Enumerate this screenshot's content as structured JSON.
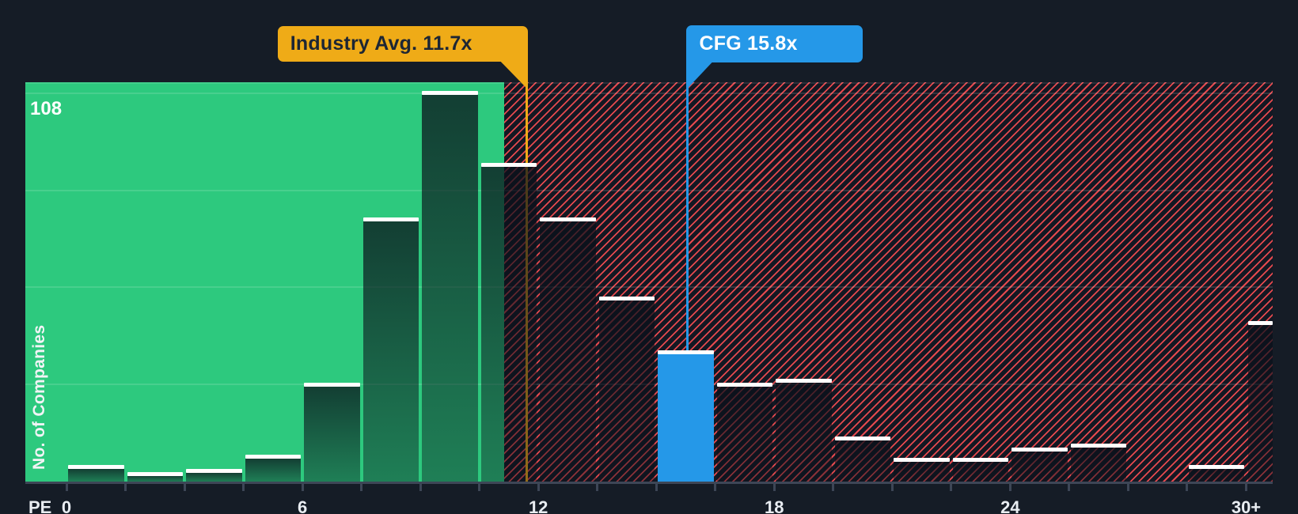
{
  "page": {
    "background_color": "#151c26"
  },
  "chart_data": {
    "type": "bar",
    "subtype": "histogram",
    "title": "",
    "xlabel": "PE",
    "ylabel": "No. of Companies",
    "grid": "horizontal-faint",
    "legend": "none",
    "x_axis": {
      "prefix_label": "PE",
      "tick_labels": [
        "0",
        "6",
        "12",
        "18",
        "24",
        "30+"
      ],
      "tick_values_pe": [
        0,
        6,
        12,
        18,
        24,
        30
      ]
    },
    "y_axis": {
      "max_label": "108",
      "gridline_values": [
        27,
        54,
        81,
        108
      ],
      "ylim": [
        0,
        111
      ]
    },
    "bins": {
      "start_pe": 0,
      "width_pe": 1.5,
      "counts": [
        4,
        2,
        3,
        7,
        27,
        73,
        108,
        88,
        73,
        51,
        36,
        27,
        28,
        12,
        6,
        6,
        9,
        10,
        0,
        4
      ],
      "overflow": {
        "label": "30+",
        "count": 44
      }
    },
    "highlight": {
      "bin_index": 10,
      "company": "CFG",
      "color": "#2598e8"
    },
    "markers": [
      {
        "id": "industry-avg",
        "label": "Industry Avg. 11.7x",
        "pe": 11.7,
        "color": "#efab17",
        "text_color": "#1d2634",
        "pointer_side": "right"
      },
      {
        "id": "cfg",
        "label": "CFG 15.8x",
        "pe": 15.8,
        "color": "#2598e8",
        "text_color": "#ffffff",
        "pointer_side": "left"
      }
    ],
    "regions": {
      "undervalued": {
        "to_pe": 11.13,
        "fill": "#2dc97e"
      },
      "overvalued": {
        "from_pe": 11.13,
        "bg": "#131823",
        "hatch_color": "#e5494e",
        "hatch_direction": "/"
      }
    },
    "bar_style": {
      "top_stroke_color": "#ffffff",
      "dark_fill_top": "rgba(10,16,26,0.75)",
      "dark_fill_bottom": "rgba(10,16,26,0.40)"
    }
  }
}
